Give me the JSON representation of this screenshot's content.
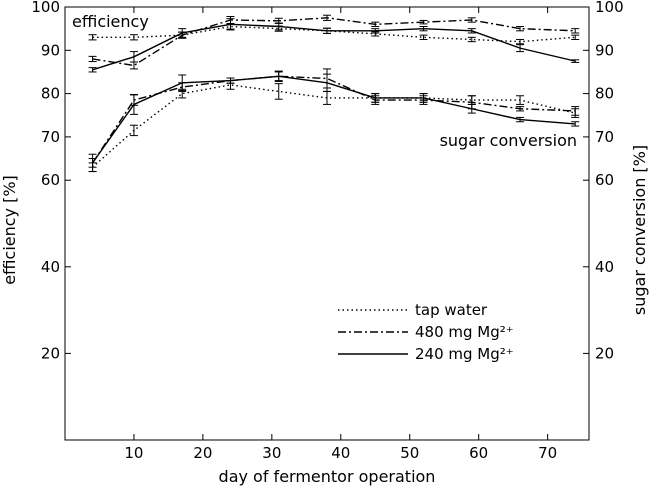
{
  "chart_data": {
    "type": "line",
    "xlabel": "day of fermentor operation",
    "ylabel_left": "efficiency [%]",
    "ylabel_right": "sugar conversion [%]",
    "xlim": [
      0,
      76
    ],
    "ylim": [
      0,
      100
    ],
    "x_ticks": [
      10,
      20,
      30,
      40,
      50,
      60,
      70
    ],
    "y_ticks": [
      20,
      40,
      60,
      70,
      80,
      90,
      100
    ],
    "grid": false,
    "legend_position": "lower-right",
    "annotations": [
      "efficiency",
      "sugar conversion"
    ],
    "series": [
      {
        "name": "tap water",
        "style": "dotted",
        "efficiency": {
          "x": [
            4,
            10,
            17,
            24,
            31,
            38,
            45,
            52,
            59,
            66,
            74
          ],
          "y": [
            93,
            93,
            93.5,
            95.5,
            95,
            94.5,
            93.8,
            93,
            92.5,
            92,
            93
          ],
          "err": [
            0.6,
            0.6,
            0.7,
            0.6,
            0.6,
            0.6,
            0.5,
            0.5,
            0.5,
            0.5,
            0.5
          ]
        },
        "sugar_conversion": {
          "x": [
            4,
            10,
            17,
            24,
            31,
            38,
            45,
            52,
            59,
            66,
            74
          ],
          "y": [
            63,
            71.5,
            80,
            82,
            80.5,
            79,
            79,
            79,
            78.5,
            78.5,
            75.5
          ],
          "err": [
            1,
            1.2,
            1,
            1,
            1.8,
            1.5,
            1,
            1,
            1,
            1,
            1
          ]
        }
      },
      {
        "name": "480 mg Mg²⁺",
        "style": "dashdot",
        "efficiency": {
          "x": [
            4,
            10,
            17,
            24,
            31,
            38,
            45,
            52,
            59,
            66,
            74
          ],
          "y": [
            88,
            86.5,
            93.5,
            97,
            96.8,
            97.5,
            96,
            96.5,
            97,
            95,
            94.5
          ],
          "err": [
            0.6,
            0.8,
            0.7,
            0.8,
            0.6,
            0.6,
            0.5,
            0.4,
            0.5,
            0.5,
            0.5
          ]
        },
        "sugar_conversion": {
          "x": [
            4,
            10,
            17,
            24,
            31,
            38,
            45,
            52,
            59,
            66,
            74
          ],
          "y": [
            64,
            78.5,
            81.5,
            83,
            84,
            83.5,
            78.5,
            78.5,
            78,
            76.5,
            76
          ],
          "err": [
            1,
            1.2,
            1,
            0.6,
            1,
            2.2,
            1,
            1,
            1.5,
            0.5,
            1
          ]
        }
      },
      {
        "name": "240 mg Mg²⁺",
        "style": "solid",
        "efficiency": {
          "x": [
            4,
            10,
            17,
            24,
            31,
            38,
            45,
            52,
            59,
            66,
            74
          ],
          "y": [
            85.5,
            88.5,
            94,
            96,
            95.5,
            94.5,
            94.5,
            95,
            94.5,
            90.5,
            87.5
          ],
          "err": [
            0.5,
            1.2,
            1,
            1.3,
            0.8,
            0.6,
            0.5,
            0.5,
            0.5,
            0.8,
            0.3
          ]
        },
        "sugar_conversion": {
          "x": [
            4,
            10,
            17,
            24,
            31,
            38,
            45,
            52,
            59,
            66,
            74
          ],
          "y": [
            64,
            77.5,
            82.5,
            83,
            84,
            82.5,
            79,
            79,
            76.5,
            74,
            73
          ],
          "err": [
            2,
            2.3,
            1.8,
            0.6,
            1.2,
            2,
            1,
            1,
            1,
            0.5,
            0.5
          ]
        }
      }
    ],
    "legend": [
      {
        "label": "tap water",
        "style": "dotted"
      },
      {
        "label": "480 mg Mg²⁺",
        "style": "dashdot"
      },
      {
        "label": "240 mg Mg²⁺",
        "style": "solid"
      }
    ]
  }
}
